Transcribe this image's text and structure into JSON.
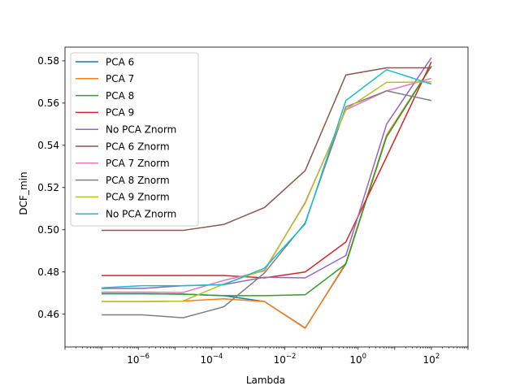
{
  "chart_data": {
    "type": "line",
    "xlabel": "Lambda",
    "ylabel": "DCF_min",
    "x_scale": "log",
    "xlim": [
      1e-08,
      1000
    ],
    "ylim": [
      0.4445,
      0.5865
    ],
    "x_ticks": [
      {
        "value": 1e-06,
        "mant": "10",
        "exp": "−6"
      },
      {
        "value": 0.0001,
        "mant": "10",
        "exp": "−4"
      },
      {
        "value": 0.01,
        "mant": "10",
        "exp": "−2"
      },
      {
        "value": 1,
        "mant": "10",
        "exp": "0"
      },
      {
        "value": 100,
        "mant": "10",
        "exp": "2"
      }
    ],
    "y_ticks": [
      {
        "value": 0.46,
        "label": "0.46"
      },
      {
        "value": 0.48,
        "label": "0.48"
      },
      {
        "value": 0.5,
        "label": "0.50"
      },
      {
        "value": 0.52,
        "label": "0.52"
      },
      {
        "value": 0.54,
        "label": "0.54"
      },
      {
        "value": 0.56,
        "label": "0.56"
      },
      {
        "value": 0.58,
        "label": "0.58"
      }
    ],
    "legend_position": "top-left",
    "grid": false,
    "x": [
      1e-07,
      1.29e-06,
      1.67e-05,
      0.000215,
      0.00278,
      0.0359,
      0.464,
      5.99,
      100
    ],
    "series": [
      {
        "name": "PCA 6",
        "color": "#1f77b4",
        "values": [
          0.4697,
          0.4697,
          0.4695,
          0.4688,
          0.466,
          0.4535,
          0.4838,
          0.5448,
          0.5775
        ]
      },
      {
        "name": "PCA 7",
        "color": "#ff7f0e",
        "values": [
          0.466,
          0.466,
          0.4662,
          0.4673,
          0.466,
          0.4533,
          0.4843,
          0.5448,
          0.5775
        ]
      },
      {
        "name": "PCA 8",
        "color": "#2ca02c",
        "values": [
          0.4697,
          0.4697,
          0.4695,
          0.4688,
          0.4688,
          0.4692,
          0.4838,
          0.544,
          0.5775
        ]
      },
      {
        "name": "PCA 9",
        "color": "#d62728",
        "values": [
          0.4783,
          0.4783,
          0.4783,
          0.4783,
          0.4772,
          0.48,
          0.4942,
          0.5345,
          0.5795
        ]
      },
      {
        "name": "No PCA Znorm",
        "color": "#9467bd",
        "values": [
          0.4722,
          0.4722,
          0.4735,
          0.474,
          0.4775,
          0.4772,
          0.4878,
          0.55,
          0.5815
        ]
      },
      {
        "name": "PCA 6 Znorm",
        "color": "#8c564b",
        "values": [
          0.4997,
          0.4997,
          0.4997,
          0.5025,
          0.5105,
          0.528,
          0.5733,
          0.5767,
          0.5767
        ]
      },
      {
        "name": "PCA 7 Znorm",
        "color": "#e377c2",
        "values": [
          0.4705,
          0.4705,
          0.4703,
          0.476,
          0.4805,
          0.513,
          0.5568,
          0.5658,
          0.5717
        ]
      },
      {
        "name": "PCA 8 Znorm",
        "color": "#7f7f7f",
        "values": [
          0.4597,
          0.4597,
          0.4583,
          0.4635,
          0.4795,
          0.5033,
          0.5582,
          0.5658,
          0.5612
        ]
      },
      {
        "name": "PCA 9 Znorm",
        "color": "#bcbd22",
        "values": [
          0.466,
          0.466,
          0.4662,
          0.4743,
          0.481,
          0.5125,
          0.557,
          0.5698,
          0.57
        ]
      },
      {
        "name": "No PCA Znorm",
        "color": "#17becf",
        "values": [
          0.4725,
          0.4735,
          0.4735,
          0.474,
          0.4818,
          0.5027,
          0.5612,
          0.5758,
          0.569
        ]
      }
    ]
  }
}
